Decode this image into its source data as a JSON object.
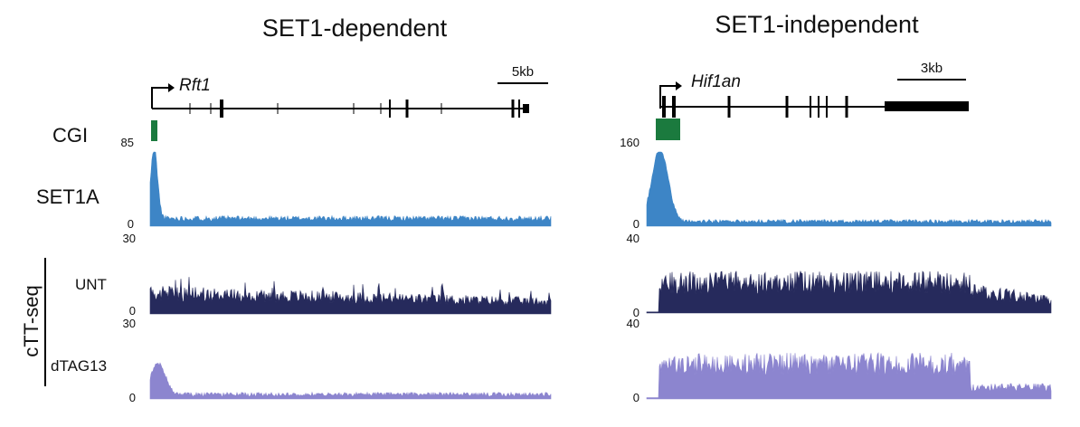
{
  "panels": [
    {
      "title": "SET1-dependent",
      "gene": "Rft1",
      "scale_bar": "5kb",
      "tracks": [
        {
          "label": "SET1A",
          "ymax": "85",
          "ymin": "0",
          "color": "#3d85c6"
        },
        {
          "label": "UNT",
          "ymax": "30",
          "ymin": "0",
          "color": "#262a5c"
        },
        {
          "label": "dTAG13",
          "ymax": "30",
          "ymin": "0",
          "color": "#8c85cf"
        }
      ]
    },
    {
      "title": "SET1-independent",
      "gene": "Hif1an",
      "scale_bar": "3kb",
      "tracks": [
        {
          "label": "",
          "ymax": "160",
          "ymin": "0",
          "color": "#3d85c6"
        },
        {
          "label": "",
          "ymax": "40",
          "ymin": "0",
          "color": "#262a5c"
        },
        {
          "label": "",
          "ymax": "40",
          "ymin": "0",
          "color": "#8c85cf"
        }
      ]
    }
  ],
  "cgi_label": "CGI",
  "cgi_color": "#1b7a3e",
  "side_label": "cTT-seq"
}
